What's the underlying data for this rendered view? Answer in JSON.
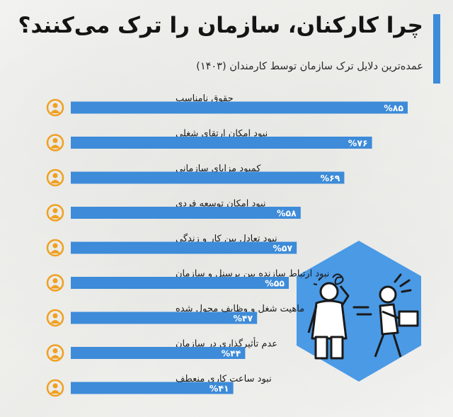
{
  "header": {
    "title": "چرا کارکنان، سازمان را ترک می‌کنند؟",
    "subtitle": "عمده‌ترین دلایل ترک سازمان توسط کارمندان (۱۴۰۳)"
  },
  "colors": {
    "bar": "#3d8bd9",
    "icon": "#f0a020",
    "hexagon": "#4a9ae6",
    "accent": "#3d8bd9"
  },
  "chart_data": {
    "type": "bar",
    "orientation": "horizontal",
    "title": "چرا کارکنان، سازمان را ترک می‌کنند؟",
    "subtitle": "عمده‌ترین دلایل ترک سازمان توسط کارمندان (۱۴۰۳)",
    "xlabel": "",
    "ylabel": "",
    "xlim": [
      0,
      100
    ],
    "grid": false,
    "categories": [
      "حقوق نامناسب",
      "نبود امکان ارتقای شغلی",
      "کمبود مزایای سازمانی",
      "نبود امکان توسعه فردی",
      "نبود تعادل بین کار و زندگی",
      "نبود ارتباط سازنده بین پرسنل و سازمان",
      "ماهیت شغل و وظایف محول شده",
      "عدم تأثیرگذاری در سازمان",
      "نبود ساعت کاری منعطف"
    ],
    "values": [
      85,
      76,
      69,
      58,
      57,
      55,
      47,
      44,
      41
    ],
    "data_labels": [
      "%۸۵",
      "%۷۶",
      "%۶۹",
      "%۵۸",
      "%۵۷",
      "%۵۵",
      "%۴۷",
      "%۴۴",
      "%۴۱"
    ],
    "icons": [
      "money-hand-icon",
      "career-ladder-icon",
      "benefits-icon",
      "growth-icon",
      "work-life-balance-icon",
      "team-communication-icon",
      "task-network-icon",
      "people-influence-icon",
      "clock-briefcase-icon"
    ]
  }
}
